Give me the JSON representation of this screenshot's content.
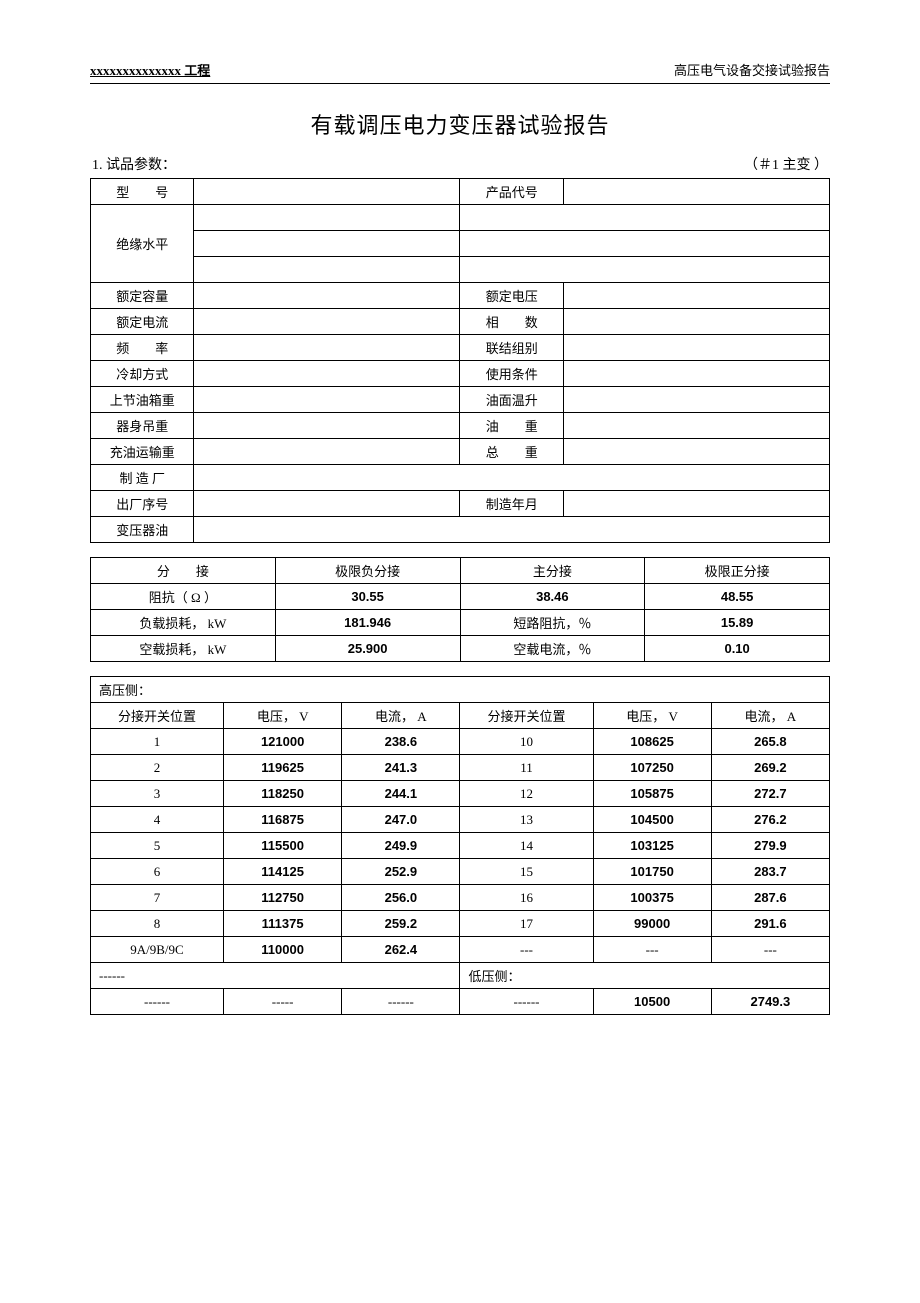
{
  "header": {
    "left": "xxxxxxxxxxxxxx   工程",
    "right": "高压电气设备交接试验报告"
  },
  "title": "有载调压电力变压器试验报告",
  "section1": {
    "label": "1. 试品参数：",
    "tag": "（＃1  主变 ）"
  },
  "params": {
    "model_lbl": "型　　号",
    "product_code_lbl": "产品代号",
    "insulation_lbl": "绝缘水平",
    "rated_cap_lbl": "额定容量",
    "rated_volt_lbl": "额定电压",
    "rated_curr_lbl": "额定电流",
    "phase_lbl": "相　　数",
    "freq_lbl": "频　　率",
    "conn_lbl": "联结组别",
    "cooling_lbl": "冷却方式",
    "usage_lbl": "使用条件",
    "top_tank_lbl": "上节油箱重",
    "oil_rise_lbl": "油面温升",
    "body_weight_lbl": "器身吊重",
    "oil_weight_lbl": "油　　重",
    "fill_weight_lbl": "充油运输重",
    "total_weight_lbl": "总　　重",
    "mfr_lbl": "制 造 厂",
    "serial_lbl": "出厂序号",
    "mfr_date_lbl": "制造年月",
    "oil_lbl": "变压器油"
  },
  "tap_table": {
    "tap_lbl": "分　　接",
    "neg_limit": "极限负分接",
    "main": "主分接",
    "pos_limit": "极限正分接",
    "impedance_lbl": "阻抗（ Ω ）",
    "impedance": [
      "30.55",
      "38.46",
      "48.55"
    ],
    "load_loss_lbl": "负载损耗， kW",
    "load_loss_val": "181.946",
    "short_imp_lbl": "短路阻抗，％",
    "short_imp_val": "15.89",
    "no_load_lbl": "空载损耗， kW",
    "no_load_val": "25.900",
    "no_load_curr_lbl": "空载电流，％",
    "no_load_curr_val": "0.10"
  },
  "hv": {
    "label": "高压侧：",
    "pos_lbl": "分接开关位置",
    "volt_lbl": "电压， V",
    "curr_lbl": "电流， A",
    "rows": [
      [
        "1",
        "121000",
        "238.6",
        "10",
        "108625",
        "265.8"
      ],
      [
        "2",
        "119625",
        "241.3",
        "11",
        "107250",
        "269.2"
      ],
      [
        "3",
        "118250",
        "244.1",
        "12",
        "105875",
        "272.7"
      ],
      [
        "4",
        "116875",
        "247.0",
        "13",
        "104500",
        "276.2"
      ],
      [
        "5",
        "115500",
        "249.9",
        "14",
        "103125",
        "279.9"
      ],
      [
        "6",
        "114125",
        "252.9",
        "15",
        "101750",
        "283.7"
      ],
      [
        "7",
        "112750",
        "256.0",
        "16",
        "100375",
        "287.6"
      ],
      [
        "8",
        "111375",
        "259.2",
        "17",
        "99000",
        "291.6"
      ],
      [
        "9A/9B/9C",
        "110000",
        "262.4",
        "---",
        "---",
        "---"
      ]
    ],
    "dash6": "------",
    "dash5": "-----",
    "lv_label": "低压侧：",
    "lv_volt": "10500",
    "lv_curr": "2749.3"
  }
}
